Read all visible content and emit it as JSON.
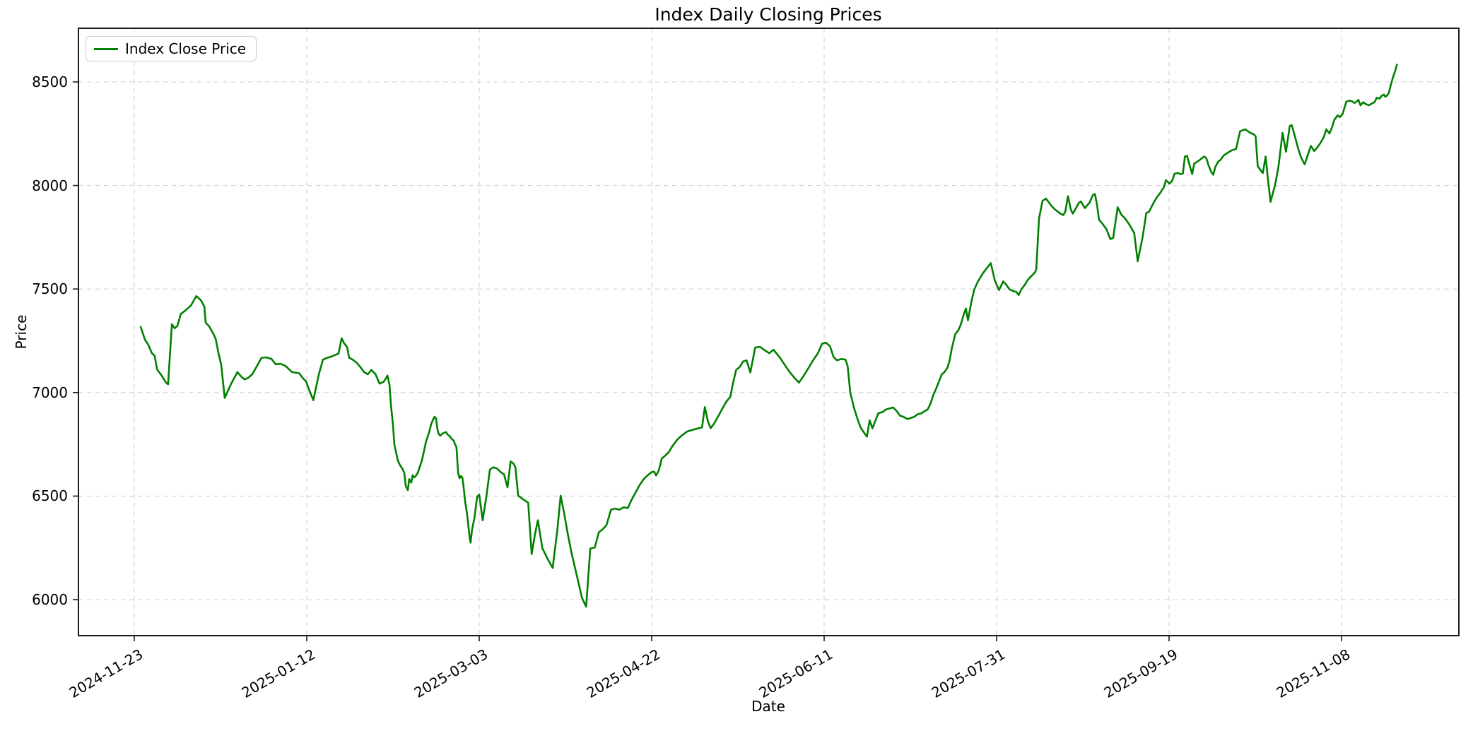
{
  "figure": {
    "title": "Index Daily Closing Prices",
    "background": "#ffffff"
  },
  "legend": {
    "position": "upper-left",
    "label": "Index Close Price",
    "line_color": "#008000"
  },
  "chart_data": {
    "type": "line",
    "title": "Index Daily Closing Prices",
    "xlabel": "Date",
    "ylabel": "Price",
    "grid": "dashed both axes",
    "grid_color": "#cccccc",
    "x_axis": {
      "kind": "date",
      "first_tick_date": "2024-11-23",
      "tick_interval_days": 50,
      "tick_day_offsets": [
        0,
        50,
        100,
        150,
        200,
        250,
        300,
        350
      ],
      "tick_labels": [
        "2024-11-23",
        "2025-01-12",
        "2025-03-03",
        "2025-04-22",
        "2025-06-11",
        "2025-07-31",
        "2025-09-19",
        "2025-11-08"
      ],
      "range_days": [
        -16.2,
        384.0
      ],
      "tick_label_rotation_deg": 30
    },
    "y_axis": {
      "ticks": [
        6000,
        6500,
        7000,
        7500,
        8000,
        8500
      ],
      "range": [
        5826,
        8759
      ]
    },
    "series": [
      {
        "name": "Index Close Price",
        "color": "#008000",
        "x_days_since_first_tick": [
          1.8,
          3.1,
          4.1,
          5.1,
          5.9,
          6.6,
          7.8,
          9.2,
          9.8,
          10.9,
          11.7,
          12.5,
          13.5,
          14.8,
          16.4,
          18,
          19.3,
          20.3,
          20.7,
          21.7,
          23,
          23.6,
          24.4,
          25.2,
          26.2,
          27.1,
          28.1,
          29.9,
          31,
          32,
          33,
          34.2,
          36.9,
          38.3,
          39.8,
          41,
          42.4,
          43.9,
          45.7,
          47.8,
          48.8,
          49.8,
          50.8,
          51.9,
          52.7,
          53.5,
          54.7,
          56,
          57,
          58.2,
          59.2,
          60.1,
          60.9,
          61.7,
          62.3,
          63.3,
          64.4,
          65.6,
          66.6,
          67.7,
          68.7,
          69.9,
          71.1,
          72.3,
          72.8,
          73.4,
          74,
          74.4,
          75,
          75.4,
          76,
          76.4,
          77,
          77.7,
          78.3,
          78.7,
          79.3,
          79.7,
          80.3,
          80.7,
          81.1,
          81.6,
          82.2,
          82.6,
          83.4,
          84,
          84.6,
          85.5,
          86.1,
          86.7,
          87.1,
          87.5,
          87.9,
          88.3,
          88.7,
          89.3,
          89.8,
          90.4,
          90.8,
          91.6,
          92,
          92.6,
          93,
          93.4,
          93.9,
          94.3,
          94.7,
          95.1,
          95.5,
          95.9,
          96.5,
          96.9,
          97.3,
          97.5,
          97.9,
          98.6,
          99,
          99.4,
          100,
          101,
          102.1,
          103.1,
          104.1,
          105.2,
          106.2,
          107.2,
          108.2,
          109.1,
          109.9,
          110.5,
          111.3,
          112.7,
          114.2,
          115.2,
          116.2,
          117,
          118.3,
          119.7,
          121.3,
          122.6,
          123.6,
          124.6,
          125.7,
          126.7,
          127.9,
          129.8,
          131,
          132.2,
          133.5,
          134.7,
          135.7,
          136.9,
          138.2,
          139.4,
          140.6,
          141.9,
          143.1,
          144.1,
          145.1,
          146.4,
          147.6,
          148.8,
          149.9,
          150.7,
          151.3,
          152.1,
          152.9,
          153.9,
          155,
          156,
          157.4,
          158.9,
          160.3,
          161.9,
          163.6,
          164.6,
          165.4,
          166.3,
          167.1,
          168.1,
          169.1,
          170.4,
          171.6,
          172.8,
          173.6,
          174.5,
          175.5,
          176.5,
          177.5,
          178.6,
          180,
          181.4,
          182.7,
          184.1,
          185.3,
          187.2,
          188.6,
          190,
          191.4,
          192.7,
          194.1,
          195.6,
          196.8,
          198.2,
          199.4,
          200.5,
          201.7,
          202.7,
          203.7,
          205,
          206.2,
          206.8,
          207.6,
          208.7,
          209.9,
          210.7,
          212.4,
          213.2,
          214,
          215.7,
          216.9,
          217.9,
          218.9,
          220,
          221,
          222,
          223,
          224.1,
          225.1,
          226.1,
          227.1,
          228.2,
          229.2,
          230,
          230.8,
          231.7,
          232.5,
          233.3,
          234.1,
          234.9,
          235.8,
          236.4,
          237,
          238,
          239,
          239.6,
          240.5,
          241.1,
          241.7,
          242.7,
          243.5,
          244.6,
          246,
          247.2,
          248.3,
          249.5,
          250.7,
          251.9,
          252.8,
          253.8,
          254.8,
          255.7,
          256.4,
          257.2,
          258.2,
          258.8,
          259.6,
          260.2,
          261.1,
          261.5,
          262.3,
          263.3,
          264.3,
          265.8,
          267,
          268.4,
          269.3,
          269.9,
          270.7,
          271.5,
          272.1,
          272.7,
          273.8,
          274.4,
          275,
          275.6,
          276.2,
          276.9,
          277.9,
          278.5,
          279.1,
          279.7,
          280.7,
          281.8,
          283,
          283.8,
          285.1,
          286.2,
          287.4,
          288.6,
          289.9,
          290.9,
          292.3,
          293.4,
          294.2,
          295.4,
          296.4,
          297.4,
          298.5,
          299.1,
          300.1,
          300.9,
          301.6,
          302.6,
          303.2,
          304,
          304.6,
          305.2,
          306.1,
          306.7,
          307.3,
          308.1,
          308.7,
          309.3,
          310.2,
          310.8,
          311.4,
          312.2,
          312.8,
          313.4,
          314.3,
          314.9,
          315.9,
          316.9,
          318.2,
          319.4,
          320.6,
          322.1,
          323.5,
          324.5,
          325.1,
          325.7,
          326.6,
          327.2,
          328,
          328.6,
          329.4,
          330.7,
          331.7,
          332.9,
          333.9,
          335,
          335.6,
          336.4,
          337.4,
          338.3,
          339.3,
          341.1,
          342.1,
          342.8,
          343.8,
          344.8,
          345.6,
          346.5,
          347.3,
          347.9,
          348.9,
          349.5,
          350.3,
          351.4,
          352.2,
          353,
          353.8,
          354.9,
          355.5,
          356.3,
          356.9,
          357.9,
          358.6,
          359.6,
          360.2,
          361,
          361.6,
          362.3,
          362.7,
          363.3,
          363.7,
          364.3,
          364.9,
          365.7,
          366.1
        ],
        "values": [
          7320,
          7255,
          7230,
          7190,
          7178,
          7112,
          7085,
          7048,
          7040,
          7330,
          7310,
          7322,
          7380,
          7396,
          7420,
          7466,
          7446,
          7415,
          7338,
          7320,
          7281,
          7259,
          7190,
          7133,
          6974,
          7006,
          7043,
          7099,
          7077,
          7063,
          7071,
          7088,
          7168,
          7170,
          7162,
          7136,
          7139,
          7128,
          7099,
          7093,
          7071,
          7054,
          7008,
          6963,
          7026,
          7088,
          7159,
          7168,
          7173,
          7181,
          7188,
          7262,
          7236,
          7219,
          7168,
          7159,
          7145,
          7122,
          7099,
          7088,
          7109,
          7090,
          7043,
          7052,
          7065,
          7082,
          7037,
          6940,
          6843,
          6747,
          6702,
          6673,
          6650,
          6633,
          6611,
          6548,
          6529,
          6582,
          6565,
          6601,
          6590,
          6597,
          6613,
          6633,
          6673,
          6718,
          6764,
          6809,
          6849,
          6872,
          6883,
          6874,
          6821,
          6798,
          6792,
          6801,
          6806,
          6809,
          6798,
          6787,
          6776,
          6768,
          6750,
          6736,
          6611,
          6586,
          6597,
          6590,
          6542,
          6476,
          6411,
          6349,
          6292,
          6275,
          6337,
          6394,
          6445,
          6497,
          6508,
          6383,
          6500,
          6628,
          6639,
          6633,
          6616,
          6605,
          6542,
          6667,
          6658,
          6639,
          6502,
          6485,
          6468,
          6220,
          6320,
          6383,
          6249,
          6201,
          6153,
          6330,
          6502,
          6420,
          6315,
          6230,
          6144,
          6008,
          5966,
          6247,
          6252,
          6326,
          6338,
          6360,
          6434,
          6440,
          6434,
          6446,
          6442,
          6480,
          6510,
          6550,
          6580,
          6600,
          6615,
          6618,
          6600,
          6625,
          6681,
          6695,
          6713,
          6741,
          6772,
          6795,
          6812,
          6820,
          6828,
          6832,
          6930,
          6862,
          6828,
          6850,
          6880,
          6920,
          6955,
          6980,
          7048,
          7110,
          7122,
          7150,
          7156,
          7097,
          7217,
          7221,
          7205,
          7190,
          7207,
          7168,
          7133,
          7099,
          7071,
          7048,
          7082,
          7122,
          7156,
          7190,
          7236,
          7241,
          7224,
          7173,
          7156,
          7162,
          7159,
          7128,
          6997,
          6923,
          6861,
          6827,
          6787,
          6866,
          6827,
          6900,
          6906,
          6918,
          6923,
          6928,
          6911,
          6888,
          6883,
          6872,
          6877,
          6883,
          6895,
          6900,
          6911,
          6918,
          6945,
          6990,
          7020,
          7054,
          7088,
          7099,
          7122,
          7156,
          7213,
          7281,
          7304,
          7327,
          7378,
          7406,
          7349,
          7440,
          7497,
          7537,
          7575,
          7602,
          7625,
          7540,
          7495,
          7537,
          7520,
          7498,
          7490,
          7486,
          7471,
          7499,
          7521,
          7538,
          7555,
          7564,
          7580,
          7595,
          7840,
          7925,
          7937,
          7903,
          7883,
          7865,
          7857,
          7872,
          7948,
          7885,
          7864,
          7881,
          7915,
          7923,
          7907,
          7891,
          7903,
          7916,
          7954,
          7959,
          7908,
          7835,
          7815,
          7790,
          7741,
          7747,
          7895,
          7858,
          7838,
          7808,
          7770,
          7634,
          7747,
          7867,
          7873,
          7913,
          7941,
          7963,
          7992,
          8026,
          8009,
          8023,
          8057,
          8060,
          8055,
          8057,
          8140,
          8143,
          8089,
          8055,
          8106,
          8114,
          8121,
          8129,
          8140,
          8132,
          8100,
          8066,
          8052,
          8089,
          8117,
          8123,
          8146,
          8157,
          8170,
          8176,
          8262,
          8271,
          8254,
          8248,
          8237,
          8094,
          8072,
          8060,
          8140,
          8040,
          7921,
          8000,
          8089,
          8254,
          8163,
          8288,
          8291,
          8242,
          8180,
          8134,
          8102,
          8191,
          8166,
          8180,
          8203,
          8231,
          8271,
          8251,
          8283,
          8317,
          8339,
          8330,
          8345,
          8405,
          8409,
          8407,
          8398,
          8413,
          8387,
          8402,
          8394,
          8387,
          8394,
          8402,
          8424,
          8419,
          8432,
          8439,
          8428,
          8436,
          8447,
          8487,
          8521,
          8561,
          8587
        ]
      }
    ]
  }
}
